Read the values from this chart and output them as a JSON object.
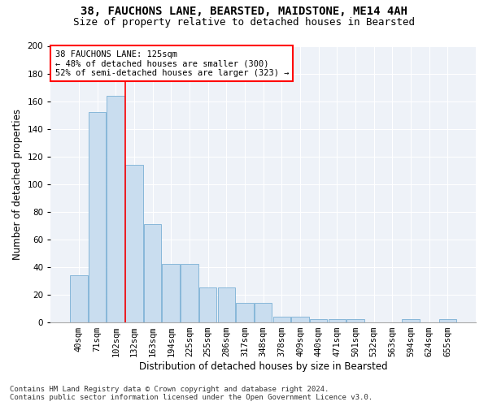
{
  "title": "38, FAUCHONS LANE, BEARSTED, MAIDSTONE, ME14 4AH",
  "subtitle": "Size of property relative to detached houses in Bearsted",
  "xlabel": "Distribution of detached houses by size in Bearsted",
  "ylabel": "Number of detached properties",
  "categories": [
    "40sqm",
    "71sqm",
    "102sqm",
    "132sqm",
    "163sqm",
    "194sqm",
    "225sqm",
    "255sqm",
    "286sqm",
    "317sqm",
    "348sqm",
    "378sqm",
    "409sqm",
    "440sqm",
    "471sqm",
    "501sqm",
    "532sqm",
    "563sqm",
    "594sqm",
    "624sqm",
    "655sqm"
  ],
  "values": [
    34,
    152,
    164,
    114,
    71,
    42,
    42,
    25,
    25,
    14,
    14,
    4,
    4,
    2,
    2,
    2,
    0,
    0,
    2,
    0,
    2
  ],
  "bar_color": "#c9ddef",
  "bar_edge_color": "#7aafd4",
  "red_line_x": 2.5,
  "annotation_text": "38 FAUCHONS LANE: 125sqm\n← 48% of detached houses are smaller (300)\n52% of semi-detached houses are larger (323) →",
  "annotation_box_color": "white",
  "annotation_box_edge_color": "red",
  "footer_line1": "Contains HM Land Registry data © Crown copyright and database right 2024.",
  "footer_line2": "Contains public sector information licensed under the Open Government Licence v3.0.",
  "ylim": [
    0,
    200
  ],
  "yticks": [
    0,
    20,
    40,
    60,
    80,
    100,
    120,
    140,
    160,
    180,
    200
  ],
  "title_fontsize": 10,
  "subtitle_fontsize": 9,
  "tick_fontsize": 7.5,
  "label_fontsize": 8.5,
  "annotation_fontsize": 7.5,
  "footer_fontsize": 6.5,
  "background_color": "#eef2f8"
}
